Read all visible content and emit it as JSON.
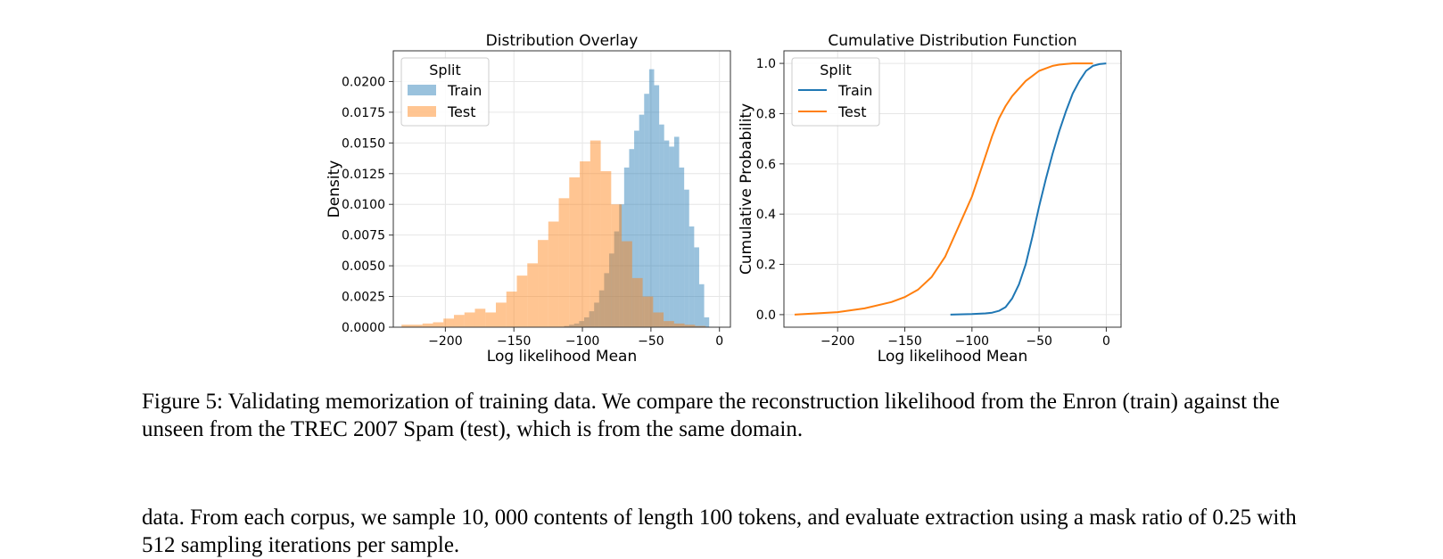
{
  "chart_data": [
    {
      "type": "histogram",
      "title": "Distribution Overlay",
      "xlabel": "Log likelihood Mean",
      "ylabel": "Density",
      "xlim": [
        -238,
        8
      ],
      "ylim": [
        0,
        0.0225
      ],
      "x_ticks": [
        -200,
        -150,
        -100,
        -50,
        0
      ],
      "x_tick_labels": [
        "−200",
        "−150",
        "−100",
        "−50",
        "0"
      ],
      "y_ticks": [
        0,
        0.0025,
        0.005,
        0.0075,
        0.01,
        0.0125,
        0.015,
        0.0175,
        0.02
      ],
      "y_tick_labels": [
        "0.0000",
        "0.0025",
        "0.0050",
        "0.0075",
        "0.0100",
        "0.0125",
        "0.0150",
        "0.0175",
        "0.0200"
      ],
      "grid": true,
      "legend": {
        "title": "Split",
        "position": "top-left",
        "entries": [
          "Train",
          "Test"
        ]
      },
      "series": [
        {
          "name": "Train",
          "color": "#1f77b4",
          "bins_start": -117,
          "bin_width": 3.65,
          "values": [
            0.0,
            0.0001,
            0.0002,
            0.0003,
            0.0005,
            0.0008,
            0.0013,
            0.002,
            0.003,
            0.0044,
            0.006,
            0.0078,
            0.01,
            0.013,
            0.0145,
            0.016,
            0.0173,
            0.019,
            0.021,
            0.0197,
            0.0165,
            0.0152,
            0.0147,
            0.0155,
            0.013,
            0.0112,
            0.0082,
            0.0065,
            0.0035,
            0.0008
          ]
        },
        {
          "name": "Test",
          "color": "#ff7f0e",
          "bins_start": -232,
          "bin_width": 7.65,
          "values": [
            0.0002,
            0.0002,
            0.0003,
            0.0004,
            0.0007,
            0.001,
            0.0012,
            0.0015,
            0.0012,
            0.002,
            0.0029,
            0.0042,
            0.0052,
            0.0071,
            0.0086,
            0.0105,
            0.0122,
            0.0135,
            0.0152,
            0.0127,
            0.01,
            0.007,
            0.004,
            0.0025,
            0.0012,
            0.0005,
            0.0003,
            0.0002,
            0.0001,
            0.0
          ]
        }
      ]
    },
    {
      "type": "line",
      "title": "Cumulative Distribution Function",
      "xlabel": "Log likelihood Mean",
      "ylabel": "Cumulative Probability",
      "xlim": [
        -240,
        11
      ],
      "ylim": [
        -0.05,
        1.05
      ],
      "x_ticks": [
        -200,
        -150,
        -100,
        -50,
        0
      ],
      "x_tick_labels": [
        "−200",
        "−150",
        "−100",
        "−50",
        "0"
      ],
      "y_ticks": [
        0,
        0.2,
        0.4,
        0.6,
        0.8,
        1.0
      ],
      "y_tick_labels": [
        "0.0",
        "0.2",
        "0.4",
        "0.6",
        "0.8",
        "1.0"
      ],
      "grid": true,
      "legend": {
        "title": "Split",
        "position": "top-left",
        "entries": [
          "Train",
          "Test"
        ]
      },
      "series": [
        {
          "name": "Train",
          "color": "#1f77b4",
          "x": [
            -116,
            -100,
            -90,
            -85,
            -80,
            -75,
            -70,
            -65,
            -60,
            -55,
            -50,
            -45,
            -40,
            -35,
            -30,
            -25,
            -20,
            -15,
            -10,
            -5,
            0
          ],
          "y": [
            0.0,
            0.002,
            0.005,
            0.008,
            0.015,
            0.03,
            0.065,
            0.12,
            0.2,
            0.31,
            0.43,
            0.54,
            0.64,
            0.73,
            0.81,
            0.88,
            0.93,
            0.97,
            0.99,
            0.997,
            1.0
          ]
        },
        {
          "name": "Test",
          "color": "#ff7f0e",
          "x": [
            -232,
            -200,
            -180,
            -160,
            -150,
            -140,
            -130,
            -120,
            -110,
            -100,
            -95,
            -90,
            -85,
            -80,
            -75,
            -70,
            -65,
            -60,
            -55,
            -50,
            -45,
            -40,
            -35,
            -30,
            -25,
            -20,
            -15,
            -10
          ],
          "y": [
            0.0,
            0.01,
            0.025,
            0.05,
            0.07,
            0.1,
            0.15,
            0.23,
            0.35,
            0.47,
            0.55,
            0.63,
            0.71,
            0.78,
            0.83,
            0.87,
            0.9,
            0.93,
            0.95,
            0.97,
            0.98,
            0.99,
            0.995,
            0.998,
            1.0,
            1.0,
            1.0,
            1.0
          ]
        }
      ]
    }
  ],
  "caption": "Figure 5: Validating memorization of training data. We compare the reconstruction likelihood from the Enron (train) against the unseen from the TREC 2007 Spam (test), which is from the same domain.",
  "body_text": "data. From each corpus, we sample 10, 000 contents of length 100 tokens, and evaluate extraction using a mask ratio of 0.25 with 512 sampling iterations per sample."
}
